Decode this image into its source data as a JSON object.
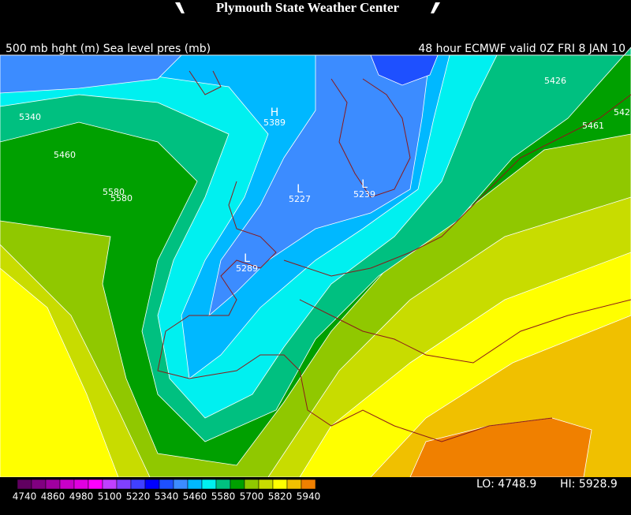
{
  "header": {
    "title": "Plymouth State Weather Center",
    "left": "500 mb hght (m) Sea level pres (mb)",
    "right": "48 hour ECMWF valid 0Z FRI 8 JAN 10"
  },
  "contour_labels": [
    "5340",
    "5460",
    "5580",
    "5580",
    "5426",
    "5461",
    "542"
  ],
  "pressure_centers": [
    {
      "symbol": "H",
      "value": "5389"
    },
    {
      "symbol": "L",
      "value": "5227"
    },
    {
      "symbol": "L",
      "value": "5239"
    },
    {
      "symbol": "L",
      "value": "5289"
    }
  ],
  "colorbar": {
    "labels": [
      4740,
      4860,
      4980,
      5100,
      5220,
      5340,
      5460,
      5580,
      5700,
      5820,
      5940
    ],
    "colors": [
      "#600060",
      "#800080",
      "#a000a0",
      "#c800c8",
      "#e000e0",
      "#ff00ff",
      "#c040ff",
      "#8040ff",
      "#4040ff",
      "#0000ff",
      "#1e50ff",
      "#3c8cff",
      "#00b8ff",
      "#00f0f0",
      "#00c080",
      "#00a000",
      "#90c800",
      "#c8dc00",
      "#ffff00",
      "#f0c000",
      "#f08000"
    ]
  },
  "stats": {
    "lo": "LO: 4748.9",
    "hi": "HI: 5928.9"
  }
}
